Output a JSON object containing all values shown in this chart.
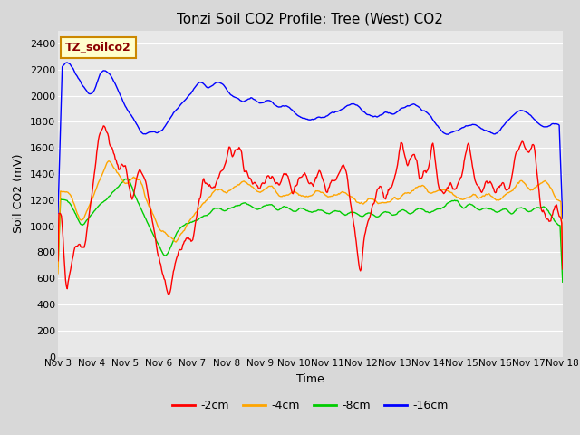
{
  "title": "Tonzi Soil CO2 Profile: Tree (West) CO2",
  "ylabel": "Soil CO2 (mV)",
  "xlabel": "Time",
  "watermark": "TZ_soilco2",
  "ylim": [
    0,
    2500
  ],
  "yticks": [
    0,
    200,
    400,
    600,
    800,
    1000,
    1200,
    1400,
    1600,
    1800,
    2000,
    2200,
    2400
  ],
  "xtick_labels": [
    "Nov 3",
    "Nov 4",
    "Nov 5",
    "Nov 6",
    "Nov 7",
    "Nov 8",
    "Nov 9",
    "Nov 10",
    "Nov 11",
    "Nov 12",
    "Nov 13",
    "Nov 14",
    "Nov 15",
    "Nov 16",
    "Nov 17",
    "Nov 18"
  ],
  "colors": {
    "-2cm": "#ff0000",
    "-4cm": "#ffa500",
    "-8cm": "#00cc00",
    "-16cm": "#0000ff"
  },
  "legend_labels": [
    "-2cm",
    "-4cm",
    "-8cm",
    "-16cm"
  ],
  "fig_bg_color": "#d8d8d8",
  "plot_bg_color": "#e8e8e8",
  "title_fontsize": 11,
  "axis_fontsize": 9,
  "tick_fontsize": 8,
  "watermark_fontsize": 9,
  "grid_color": "#ffffff",
  "n_points": 600
}
